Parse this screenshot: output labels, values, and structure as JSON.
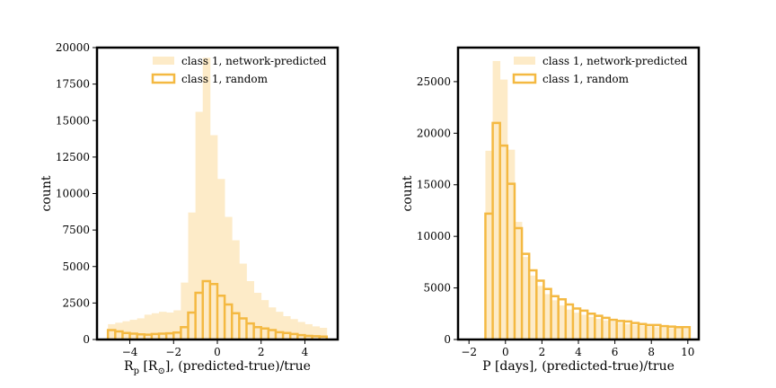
{
  "colors": {
    "predicted_fill": "#fdebc8",
    "random_edge": "#f4b942",
    "axis": "#000000"
  },
  "chart_data": [
    {
      "type": "bar",
      "histogram": true,
      "xlabel": "R_p [R_⊙], (predicted-true)/true",
      "xlabel_parts": {
        "main": "R",
        "sub_p": "p",
        "bracket_open": " [",
        "R": "R",
        "sub_sun": "⊙",
        "rest": "], (predicted-true)/true"
      },
      "ylabel": "count",
      "xlim": [
        -5.5,
        5.5
      ],
      "ylim": [
        0,
        20000
      ],
      "xticks": [
        -4,
        -2,
        0,
        2,
        4
      ],
      "xtick_labels": [
        "−4",
        "−2",
        "0",
        "2",
        "4"
      ],
      "yticks": [
        0,
        2500,
        5000,
        7500,
        10000,
        12500,
        15000,
        17500,
        20000
      ],
      "ytick_labels": [
        "0",
        "2500",
        "5000",
        "7500",
        "10000",
        "12500",
        "15000",
        "17500",
        "20000"
      ],
      "legend_position": "top-right",
      "bin_start": -5,
      "bin_width": 0.3333,
      "series": [
        {
          "name": "class 1, network-predicted",
          "style": "filled",
          "values": [
            1050,
            1150,
            1250,
            1350,
            1450,
            1700,
            1800,
            1900,
            1850,
            2000,
            3900,
            8700,
            15600,
            19300,
            14000,
            11000,
            8400,
            6800,
            5200,
            4000,
            3200,
            2700,
            2200,
            1900,
            1600,
            1400,
            1200,
            1050,
            900,
            800
          ]
        },
        {
          "name": "class 1, random",
          "style": "step",
          "values": [
            650,
            550,
            450,
            400,
            350,
            330,
            380,
            400,
            420,
            480,
            850,
            1850,
            3200,
            4000,
            3800,
            3000,
            2400,
            1800,
            1450,
            1100,
            850,
            750,
            650,
            500,
            450,
            380,
            300,
            250,
            220,
            200
          ]
        }
      ]
    },
    {
      "type": "bar",
      "histogram": true,
      "xlabel": "P [days], (predicted-true)/true",
      "ylabel": "count",
      "xlim": [
        -2.6,
        10.6
      ],
      "ylim": [
        0,
        28300
      ],
      "xticks": [
        -2,
        0,
        2,
        4,
        6,
        8,
        10
      ],
      "xtick_labels": [
        "−2",
        "0",
        "2",
        "4",
        "6",
        "8",
        "10"
      ],
      "yticks": [
        0,
        5000,
        10000,
        15000,
        20000,
        25000
      ],
      "ytick_labels": [
        "0",
        "5000",
        "10000",
        "15000",
        "20000",
        "25000"
      ],
      "legend_position": "top-right",
      "bin_start": -1.1,
      "bin_width": 0.4,
      "series": [
        {
          "name": "class 1, network-predicted",
          "style": "filled",
          "values": [
            18300,
            27000,
            25200,
            18400,
            11400,
            8000,
            6200,
            5200,
            4400,
            3800,
            3300,
            2900,
            2600,
            2400,
            2200,
            2000,
            1850,
            1750,
            1600,
            1500,
            1400,
            1350,
            1250,
            1200,
            1150,
            1100,
            1100,
            1050
          ]
        },
        {
          "name": "class 1, random",
          "style": "step",
          "values": [
            12200,
            21000,
            18800,
            15100,
            10800,
            8300,
            6700,
            5700,
            4900,
            4200,
            3900,
            3400,
            3000,
            2800,
            2500,
            2300,
            2100,
            1900,
            1800,
            1750,
            1600,
            1500,
            1400,
            1400,
            1300,
            1250,
            1200,
            1200
          ]
        }
      ]
    }
  ]
}
